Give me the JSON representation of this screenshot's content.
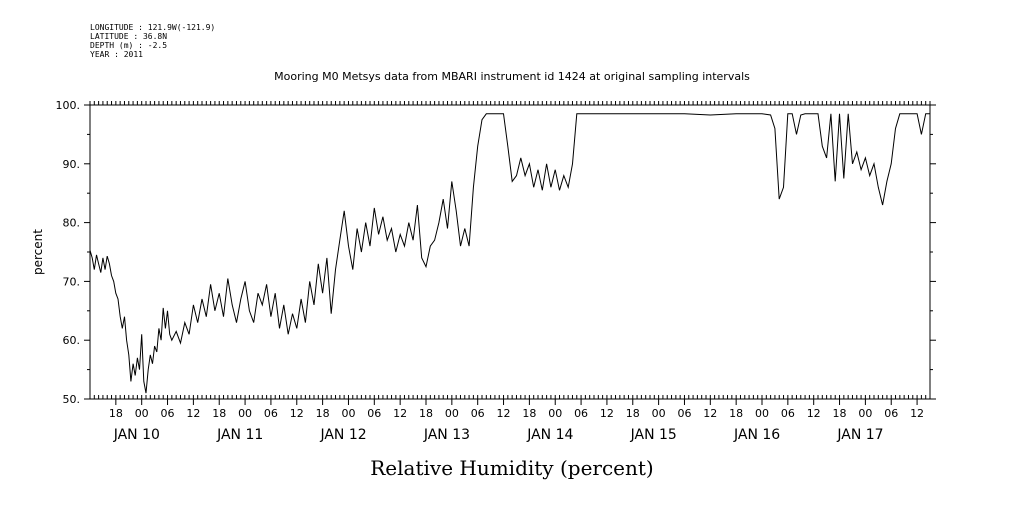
{
  "header": {
    "lines": [
      "LONGITUDE : 121.9W(-121.9)",
      "LATITUDE : 36.8N",
      "DEPTH (m) : -2.5",
      "YEAR : 2011"
    ],
    "title": "Mooring M0 Metsys data from MBARI instrument id 1424 at original sampling intervals"
  },
  "chart_data": {
    "type": "line",
    "title": "Mooring M0 Metsys data from MBARI instrument id 1424 at original sampling intervals",
    "xlabel": "Relative Humidity (percent)",
    "ylabel": "percent",
    "xlim": [
      "2011-01-09 12:00",
      "2011-01-17 15:00"
    ],
    "ylim": [
      50,
      100
    ],
    "y_ticks": [
      "50.",
      "60.",
      "70.",
      "80.",
      "90.",
      "100."
    ],
    "x_hour_ticks": [
      {
        "t": "2011-01-09 18:00",
        "label": "18"
      },
      {
        "t": "2011-01-10 00:00",
        "label": "00"
      },
      {
        "t": "2011-01-10 06:00",
        "label": "06"
      },
      {
        "t": "2011-01-10 12:00",
        "label": "12"
      },
      {
        "t": "2011-01-10 18:00",
        "label": "18"
      },
      {
        "t": "2011-01-11 00:00",
        "label": "00"
      },
      {
        "t": "2011-01-11 06:00",
        "label": "06"
      },
      {
        "t": "2011-01-11 12:00",
        "label": "12"
      },
      {
        "t": "2011-01-11 18:00",
        "label": "18"
      },
      {
        "t": "2011-01-12 00:00",
        "label": "00"
      },
      {
        "t": "2011-01-12 06:00",
        "label": "06"
      },
      {
        "t": "2011-01-12 12:00",
        "label": "12"
      },
      {
        "t": "2011-01-12 18:00",
        "label": "18"
      },
      {
        "t": "2011-01-13 00:00",
        "label": "00"
      },
      {
        "t": "2011-01-13 06:00",
        "label": "06"
      },
      {
        "t": "2011-01-13 12:00",
        "label": "12"
      },
      {
        "t": "2011-01-13 18:00",
        "label": "18"
      },
      {
        "t": "2011-01-14 00:00",
        "label": "00"
      },
      {
        "t": "2011-01-14 06:00",
        "label": "06"
      },
      {
        "t": "2011-01-14 12:00",
        "label": "12"
      },
      {
        "t": "2011-01-14 18:00",
        "label": "18"
      },
      {
        "t": "2011-01-15 00:00",
        "label": "00"
      },
      {
        "t": "2011-01-15 06:00",
        "label": "06"
      },
      {
        "t": "2011-01-15 12:00",
        "label": "12"
      },
      {
        "t": "2011-01-15 18:00",
        "label": "18"
      },
      {
        "t": "2011-01-16 00:00",
        "label": "00"
      },
      {
        "t": "2011-01-16 06:00",
        "label": "06"
      },
      {
        "t": "2011-01-16 12:00",
        "label": "12"
      },
      {
        "t": "2011-01-16 18:00",
        "label": "18"
      },
      {
        "t": "2011-01-17 00:00",
        "label": "00"
      },
      {
        "t": "2011-01-17 06:00",
        "label": "06"
      },
      {
        "t": "2011-01-17 12:00",
        "label": "12"
      }
    ],
    "x_day_labels": [
      {
        "t": "2011-01-10 00:00",
        "label": "JAN 10"
      },
      {
        "t": "2011-01-11 00:00",
        "label": "JAN 11"
      },
      {
        "t": "2011-01-12 00:00",
        "label": "JAN 12"
      },
      {
        "t": "2011-01-13 00:00",
        "label": "JAN 13"
      },
      {
        "t": "2011-01-14 00:00",
        "label": "JAN 14"
      },
      {
        "t": "2011-01-15 00:00",
        "label": "JAN 15"
      },
      {
        "t": "2011-01-16 00:00",
        "label": "JAN 16"
      },
      {
        "t": "2011-01-17 00:00",
        "label": "JAN 17"
      }
    ],
    "grid": false,
    "series": [
      {
        "color": "#000000",
        "points": [
          [
            "2011-01-09 12:00",
            75.3
          ],
          [
            "2011-01-09 12:30",
            74.0
          ],
          [
            "2011-01-09 13:00",
            72.0
          ],
          [
            "2011-01-09 13:30",
            74.5
          ],
          [
            "2011-01-09 14:00",
            73.0
          ],
          [
            "2011-01-09 14:30",
            71.5
          ],
          [
            "2011-01-09 15:00",
            74.0
          ],
          [
            "2011-01-09 15:30",
            72.0
          ],
          [
            "2011-01-09 16:00",
            74.3
          ],
          [
            "2011-01-09 16:30",
            73.0
          ],
          [
            "2011-01-09 17:00",
            71.0
          ],
          [
            "2011-01-09 17:30",
            70.0
          ],
          [
            "2011-01-09 18:00",
            68.0
          ],
          [
            "2011-01-09 18:30",
            67.0
          ],
          [
            "2011-01-09 19:00",
            64.0
          ],
          [
            "2011-01-09 19:30",
            62.0
          ],
          [
            "2011-01-09 20:00",
            64.0
          ],
          [
            "2011-01-09 20:30",
            60.0
          ],
          [
            "2011-01-09 21:00",
            57.5
          ],
          [
            "2011-01-09 21:30",
            53.0
          ],
          [
            "2011-01-09 22:00",
            56.0
          ],
          [
            "2011-01-09 22:30",
            54.0
          ],
          [
            "2011-01-09 23:00",
            57.0
          ],
          [
            "2011-01-09 23:30",
            55.0
          ],
          [
            "2011-01-10 00:00",
            61.0
          ],
          [
            "2011-01-10 00:30",
            53.0
          ],
          [
            "2011-01-10 01:00",
            51.0
          ],
          [
            "2011-01-10 01:30",
            55.0
          ],
          [
            "2011-01-10 02:00",
            57.5
          ],
          [
            "2011-01-10 02:30",
            56.0
          ],
          [
            "2011-01-10 03:00",
            59.0
          ],
          [
            "2011-01-10 03:30",
            58.0
          ],
          [
            "2011-01-10 04:00",
            62.0
          ],
          [
            "2011-01-10 04:30",
            60.0
          ],
          [
            "2011-01-10 05:00",
            65.5
          ],
          [
            "2011-01-10 05:30",
            62.0
          ],
          [
            "2011-01-10 06:00",
            65.0
          ],
          [
            "2011-01-10 06:30",
            61.0
          ],
          [
            "2011-01-10 07:00",
            60.0
          ],
          [
            "2011-01-10 08:00",
            61.5
          ],
          [
            "2011-01-10 09:00",
            59.5
          ],
          [
            "2011-01-10 10:00",
            63.0
          ],
          [
            "2011-01-10 11:00",
            61.0
          ],
          [
            "2011-01-10 12:00",
            66.0
          ],
          [
            "2011-01-10 13:00",
            63.0
          ],
          [
            "2011-01-10 14:00",
            67.0
          ],
          [
            "2011-01-10 15:00",
            64.0
          ],
          [
            "2011-01-10 16:00",
            69.5
          ],
          [
            "2011-01-10 17:00",
            65.0
          ],
          [
            "2011-01-10 18:00",
            68.0
          ],
          [
            "2011-01-10 19:00",
            64.0
          ],
          [
            "2011-01-10 20:00",
            70.5
          ],
          [
            "2011-01-10 21:00",
            66.0
          ],
          [
            "2011-01-10 22:00",
            63.0
          ],
          [
            "2011-01-10 23:00",
            67.0
          ],
          [
            "2011-01-11 00:00",
            70.0
          ],
          [
            "2011-01-11 01:00",
            65.0
          ],
          [
            "2011-01-11 02:00",
            63.0
          ],
          [
            "2011-01-11 03:00",
            68.0
          ],
          [
            "2011-01-11 04:00",
            66.0
          ],
          [
            "2011-01-11 05:00",
            69.5
          ],
          [
            "2011-01-11 06:00",
            64.0
          ],
          [
            "2011-01-11 07:00",
            68.0
          ],
          [
            "2011-01-11 08:00",
            62.0
          ],
          [
            "2011-01-11 09:00",
            66.0
          ],
          [
            "2011-01-11 10:00",
            61.0
          ],
          [
            "2011-01-11 11:00",
            64.5
          ],
          [
            "2011-01-11 12:00",
            62.0
          ],
          [
            "2011-01-11 13:00",
            67.0
          ],
          [
            "2011-01-11 14:00",
            63.0
          ],
          [
            "2011-01-11 15:00",
            70.0
          ],
          [
            "2011-01-11 16:00",
            66.0
          ],
          [
            "2011-01-11 17:00",
            73.0
          ],
          [
            "2011-01-11 18:00",
            68.0
          ],
          [
            "2011-01-11 19:00",
            74.0
          ],
          [
            "2011-01-11 20:00",
            64.5
          ],
          [
            "2011-01-11 21:00",
            72.0
          ],
          [
            "2011-01-11 22:00",
            77.0
          ],
          [
            "2011-01-11 23:00",
            82.0
          ],
          [
            "2011-01-12 00:00",
            76.0
          ],
          [
            "2011-01-12 01:00",
            72.0
          ],
          [
            "2011-01-12 02:00",
            79.0
          ],
          [
            "2011-01-12 03:00",
            75.0
          ],
          [
            "2011-01-12 04:00",
            80.0
          ],
          [
            "2011-01-12 05:00",
            76.0
          ],
          [
            "2011-01-12 06:00",
            82.5
          ],
          [
            "2011-01-12 07:00",
            78.0
          ],
          [
            "2011-01-12 08:00",
            81.0
          ],
          [
            "2011-01-12 09:00",
            77.0
          ],
          [
            "2011-01-12 10:00",
            79.0
          ],
          [
            "2011-01-12 11:00",
            75.0
          ],
          [
            "2011-01-12 12:00",
            78.0
          ],
          [
            "2011-01-12 13:00",
            76.0
          ],
          [
            "2011-01-12 14:00",
            80.0
          ],
          [
            "2011-01-12 15:00",
            77.0
          ],
          [
            "2011-01-12 16:00",
            83.0
          ],
          [
            "2011-01-12 17:00",
            74.0
          ],
          [
            "2011-01-12 18:00",
            72.5
          ],
          [
            "2011-01-12 19:00",
            76.0
          ],
          [
            "2011-01-12 20:00",
            77.0
          ],
          [
            "2011-01-12 21:00",
            80.0
          ],
          [
            "2011-01-12 22:00",
            84.0
          ],
          [
            "2011-01-12 23:00",
            79.0
          ],
          [
            "2011-01-13 00:00",
            87.0
          ],
          [
            "2011-01-13 01:00",
            82.0
          ],
          [
            "2011-01-13 02:00",
            76.0
          ],
          [
            "2011-01-13 03:00",
            79.0
          ],
          [
            "2011-01-13 04:00",
            76.0
          ],
          [
            "2011-01-13 05:00",
            86.0
          ],
          [
            "2011-01-13 06:00",
            93.0
          ],
          [
            "2011-01-13 07:00",
            97.5
          ],
          [
            "2011-01-13 08:00",
            98.5
          ],
          [
            "2011-01-13 09:00",
            98.5
          ],
          [
            "2011-01-13 10:00",
            98.5
          ],
          [
            "2011-01-13 11:00",
            98.5
          ],
          [
            "2011-01-13 12:00",
            98.5
          ],
          [
            "2011-01-13 13:00",
            93.0
          ],
          [
            "2011-01-13 14:00",
            87.0
          ],
          [
            "2011-01-13 15:00",
            88.0
          ],
          [
            "2011-01-13 16:00",
            91.0
          ],
          [
            "2011-01-13 17:00",
            88.0
          ],
          [
            "2011-01-13 18:00",
            90.0
          ],
          [
            "2011-01-13 19:00",
            86.0
          ],
          [
            "2011-01-13 20:00",
            89.0
          ],
          [
            "2011-01-13 21:00",
            85.5
          ],
          [
            "2011-01-13 22:00",
            90.0
          ],
          [
            "2011-01-13 23:00",
            86.0
          ],
          [
            "2011-01-14 00:00",
            89.0
          ],
          [
            "2011-01-14 01:00",
            85.5
          ],
          [
            "2011-01-14 02:00",
            88.0
          ],
          [
            "2011-01-14 03:00",
            86.0
          ],
          [
            "2011-01-14 04:00",
            90.0
          ],
          [
            "2011-01-14 05:00",
            98.5
          ],
          [
            "2011-01-14 12:00",
            98.5
          ],
          [
            "2011-01-14 18:00",
            98.5
          ],
          [
            "2011-01-15 00:00",
            98.5
          ],
          [
            "2011-01-15 06:00",
            98.5
          ],
          [
            "2011-01-15 12:00",
            98.3
          ],
          [
            "2011-01-15 18:00",
            98.5
          ],
          [
            "2011-01-16 00:00",
            98.5
          ],
          [
            "2011-01-16 02:00",
            98.3
          ],
          [
            "2011-01-16 03:00",
            96.0
          ],
          [
            "2011-01-16 04:00",
            84.0
          ],
          [
            "2011-01-16 05:00",
            86.0
          ],
          [
            "2011-01-16 06:00",
            98.5
          ],
          [
            "2011-01-16 07:00",
            98.5
          ],
          [
            "2011-01-16 08:00",
            95.0
          ],
          [
            "2011-01-16 09:00",
            98.3
          ],
          [
            "2011-01-16 10:00",
            98.5
          ],
          [
            "2011-01-16 11:00",
            98.5
          ],
          [
            "2011-01-16 12:00",
            98.5
          ],
          [
            "2011-01-16 13:00",
            98.5
          ],
          [
            "2011-01-16 14:00",
            93.0
          ],
          [
            "2011-01-16 15:00",
            91.0
          ],
          [
            "2011-01-16 16:00",
            98.5
          ],
          [
            "2011-01-16 17:00",
            87.0
          ],
          [
            "2011-01-16 18:00",
            98.5
          ],
          [
            "2011-01-16 19:00",
            87.5
          ],
          [
            "2011-01-16 20:00",
            98.5
          ],
          [
            "2011-01-16 21:00",
            90.0
          ],
          [
            "2011-01-16 22:00",
            92.0
          ],
          [
            "2011-01-16 23:00",
            89.0
          ],
          [
            "2011-01-17 00:00",
            91.0
          ],
          [
            "2011-01-17 01:00",
            88.0
          ],
          [
            "2011-01-17 02:00",
            90.0
          ],
          [
            "2011-01-17 03:00",
            86.0
          ],
          [
            "2011-01-17 04:00",
            83.0
          ],
          [
            "2011-01-17 05:00",
            87.0
          ],
          [
            "2011-01-17 06:00",
            90.0
          ],
          [
            "2011-01-17 07:00",
            96.0
          ],
          [
            "2011-01-17 08:00",
            98.5
          ],
          [
            "2011-01-17 09:00",
            98.5
          ],
          [
            "2011-01-17 12:00",
            98.5
          ],
          [
            "2011-01-17 13:00",
            95.0
          ],
          [
            "2011-01-17 14:00",
            98.5
          ],
          [
            "2011-01-17 15:00",
            98.5
          ]
        ]
      }
    ]
  }
}
